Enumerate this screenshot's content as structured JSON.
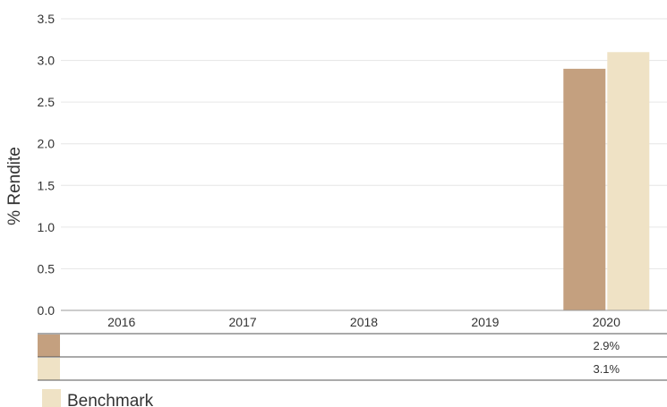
{
  "chart_data": {
    "type": "bar",
    "ylabel": "% Rendite",
    "ylim": [
      0,
      3.5
    ],
    "yticks": [
      "0.0",
      "0.5",
      "1.0",
      "1.5",
      "2.0",
      "2.5",
      "3.0",
      "3.5"
    ],
    "categories": [
      "2016",
      "2017",
      "2018",
      "2019",
      "2020"
    ],
    "grid": true,
    "series": [
      {
        "name": "",
        "color": "#c4a07f",
        "values": [
          null,
          null,
          null,
          null,
          2.9
        ],
        "labels": [
          "",
          "",
          "",
          "",
          "2.9%"
        ]
      },
      {
        "name": "Benchmark",
        "color": "#efe2c5",
        "values": [
          null,
          null,
          null,
          null,
          3.1
        ],
        "labels": [
          "",
          "",
          "",
          "",
          "3.1%"
        ]
      }
    ],
    "legend": {
      "position": "bottom-left",
      "entries": [
        "Benchmark"
      ]
    }
  }
}
